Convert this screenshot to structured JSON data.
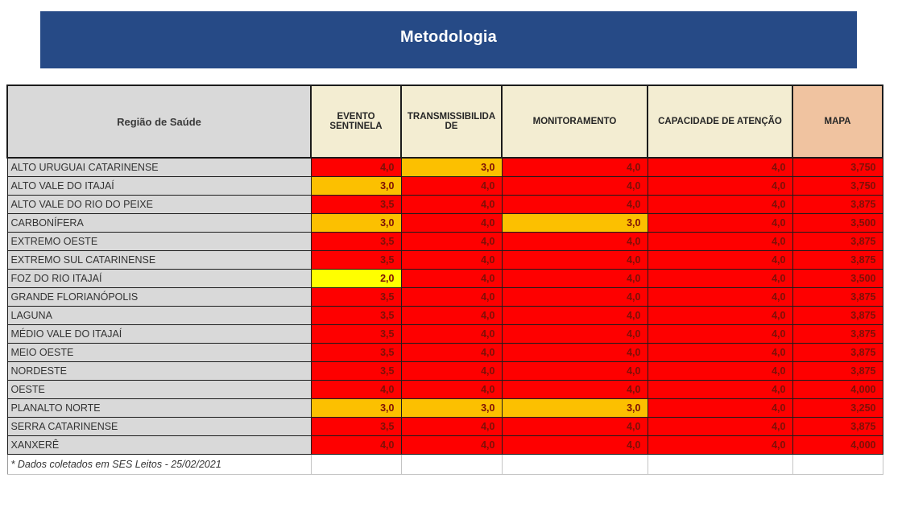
{
  "banner": {
    "title": "Metodologia"
  },
  "theme": {
    "banner_bg": "#264a86",
    "gray": "#d9d9d9",
    "cream": "#f3edd2",
    "salmon": "#f0c3a0",
    "red": "#fe0000",
    "orange": "#fcc000",
    "yellow": "#ffff00",
    "val_text": "#7d1007"
  },
  "table": {
    "columns": [
      {
        "label": "Região de Saúde"
      },
      {
        "label": "EVENTO SENTINELA"
      },
      {
        "label": "TRANSMISSIBILIDADE"
      },
      {
        "label": "MONITORAMENTO"
      },
      {
        "label": "CAPACIDADE DE ATENÇÃO"
      },
      {
        "label": "MAPA"
      }
    ],
    "rows": [
      {
        "region": "ALTO URUGUAI CATARINENSE",
        "values": [
          "4,0",
          "3,0",
          "4,0",
          "4,0",
          "3,750"
        ],
        "colors": [
          "red",
          "orange",
          "red",
          "red",
          "red"
        ]
      },
      {
        "region": "ALTO VALE DO ITAJAÍ",
        "values": [
          "3,0",
          "4,0",
          "4,0",
          "4,0",
          "3,750"
        ],
        "colors": [
          "orange",
          "red",
          "red",
          "red",
          "red"
        ]
      },
      {
        "region": "ALTO VALE DO RIO DO PEIXE",
        "values": [
          "3,5",
          "4,0",
          "4,0",
          "4,0",
          "3,875"
        ],
        "colors": [
          "red",
          "red",
          "red",
          "red",
          "red"
        ]
      },
      {
        "region": "CARBONÍFERA",
        "values": [
          "3,0",
          "4,0",
          "3,0",
          "4,0",
          "3,500"
        ],
        "colors": [
          "orange",
          "red",
          "orange",
          "red",
          "red"
        ]
      },
      {
        "region": "EXTREMO OESTE",
        "values": [
          "3,5",
          "4,0",
          "4,0",
          "4,0",
          "3,875"
        ],
        "colors": [
          "red",
          "red",
          "red",
          "red",
          "red"
        ]
      },
      {
        "region": "EXTREMO SUL CATARINENSE",
        "values": [
          "3,5",
          "4,0",
          "4,0",
          "4,0",
          "3,875"
        ],
        "colors": [
          "red",
          "red",
          "red",
          "red",
          "red"
        ]
      },
      {
        "region": "FOZ DO RIO ITAJAÍ",
        "values": [
          "2,0",
          "4,0",
          "4,0",
          "4,0",
          "3,500"
        ],
        "colors": [
          "yellow",
          "red",
          "red",
          "red",
          "red"
        ]
      },
      {
        "region": "GRANDE FLORIANÓPOLIS",
        "values": [
          "3,5",
          "4,0",
          "4,0",
          "4,0",
          "3,875"
        ],
        "colors": [
          "red",
          "red",
          "red",
          "red",
          "red"
        ]
      },
      {
        "region": "LAGUNA",
        "values": [
          "3,5",
          "4,0",
          "4,0",
          "4,0",
          "3,875"
        ],
        "colors": [
          "red",
          "red",
          "red",
          "red",
          "red"
        ]
      },
      {
        "region": "MÉDIO VALE DO ITAJAÍ",
        "values": [
          "3,5",
          "4,0",
          "4,0",
          "4,0",
          "3,875"
        ],
        "colors": [
          "red",
          "red",
          "red",
          "red",
          "red"
        ]
      },
      {
        "region": "MEIO OESTE",
        "values": [
          "3,5",
          "4,0",
          "4,0",
          "4,0",
          "3,875"
        ],
        "colors": [
          "red",
          "red",
          "red",
          "red",
          "red"
        ]
      },
      {
        "region": "NORDESTE",
        "values": [
          "3,5",
          "4,0",
          "4,0",
          "4,0",
          "3,875"
        ],
        "colors": [
          "red",
          "red",
          "red",
          "red",
          "red"
        ]
      },
      {
        "region": "OESTE",
        "values": [
          "4,0",
          "4,0",
          "4,0",
          "4,0",
          "4,000"
        ],
        "colors": [
          "red",
          "red",
          "red",
          "red",
          "red"
        ]
      },
      {
        "region": "PLANALTO NORTE",
        "values": [
          "3,0",
          "3,0",
          "3,0",
          "4,0",
          "3,250"
        ],
        "colors": [
          "orange",
          "orange",
          "orange",
          "red",
          "red"
        ]
      },
      {
        "region": "SERRA CATARINENSE",
        "values": [
          "3,5",
          "4,0",
          "4,0",
          "4,0",
          "3,875"
        ],
        "colors": [
          "red",
          "red",
          "red",
          "red",
          "red"
        ]
      },
      {
        "region": "XANXERÊ",
        "values": [
          "4,0",
          "4,0",
          "4,0",
          "4,0",
          "4,000"
        ],
        "colors": [
          "red",
          "red",
          "red",
          "red",
          "red"
        ]
      }
    ],
    "footnote": "* Dados coletados em SES Leitos - 25/02/2021"
  }
}
